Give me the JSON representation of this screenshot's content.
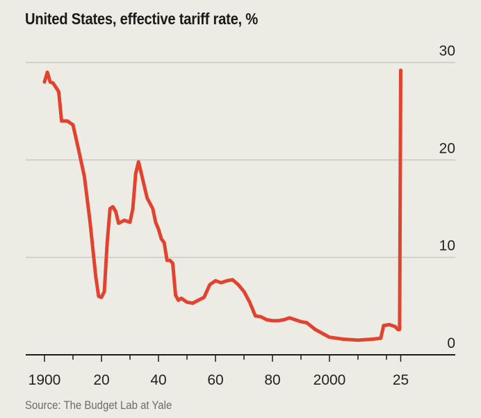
{
  "chart_data": {
    "type": "line",
    "title": "United States, effective tariff rate, %",
    "source": "Source: The Budget Lab at Yale",
    "xlabel": "",
    "ylabel": "",
    "xlim": [
      1893,
      2044
    ],
    "ylim": [
      0,
      30
    ],
    "grid": true,
    "y_ticks": [
      {
        "value": 0,
        "label": "0"
      },
      {
        "value": 10,
        "label": "10"
      },
      {
        "value": 20,
        "label": "20"
      },
      {
        "value": 30,
        "label": "30"
      }
    ],
    "x_ticks": [
      {
        "value": 1900,
        "label": "1900"
      },
      {
        "value": 1920,
        "label": "20"
      },
      {
        "value": 1940,
        "label": "40"
      },
      {
        "value": 1960,
        "label": "60"
      },
      {
        "value": 1980,
        "label": "80"
      },
      {
        "value": 2000,
        "label": "2000"
      },
      {
        "value": 2025,
        "label": "25"
      }
    ],
    "minor_ticks": [
      1910,
      1930,
      1950,
      1970,
      1990,
      2010,
      2020
    ],
    "series": [
      {
        "name": "Effective tariff rate",
        "color": "#e2432e",
        "x": [
          1900,
          1901,
          1902,
          1903,
          1905,
          1906,
          1908,
          1910,
          1912,
          1914,
          1916,
          1918,
          1919,
          1920,
          1921,
          1922,
          1923,
          1924,
          1925,
          1926,
          1928,
          1930,
          1931,
          1932,
          1933,
          1934,
          1936,
          1938,
          1939,
          1940,
          1941,
          1942,
          1943,
          1944,
          1945,
          1946,
          1947,
          1948,
          1950,
          1952,
          1954,
          1956,
          1958,
          1960,
          1962,
          1964,
          1966,
          1968,
          1970,
          1972,
          1974,
          1976,
          1978,
          1980,
          1982,
          1984,
          1986,
          1988,
          1990,
          1992,
          1995,
          2000,
          2005,
          2010,
          2015,
          2018,
          2019,
          2021,
          2023,
          2024,
          2024.6,
          2025
        ],
        "y": [
          28,
          29,
          28,
          27.9,
          27,
          24,
          24,
          23.6,
          21,
          18.3,
          13.6,
          8,
          6,
          5.9,
          6.5,
          11.5,
          15,
          15.2,
          14.7,
          13.5,
          13.8,
          13.6,
          15,
          18.6,
          19.8,
          18.6,
          16.1,
          15,
          13.6,
          12.9,
          11.9,
          11.5,
          9.7,
          9.7,
          9.4,
          6.1,
          5.6,
          5.8,
          5.4,
          5.3,
          5.6,
          5.9,
          7.2,
          7.6,
          7.4,
          7.6,
          7.7,
          7.2,
          6.5,
          5.4,
          4,
          3.9,
          3.6,
          3.5,
          3.5,
          3.6,
          3.8,
          3.6,
          3.4,
          3.3,
          2.6,
          1.8,
          1.6,
          1.5,
          1.6,
          1.7,
          3,
          3.1,
          2.9,
          2.6,
          2.6,
          29.2
        ]
      }
    ]
  }
}
